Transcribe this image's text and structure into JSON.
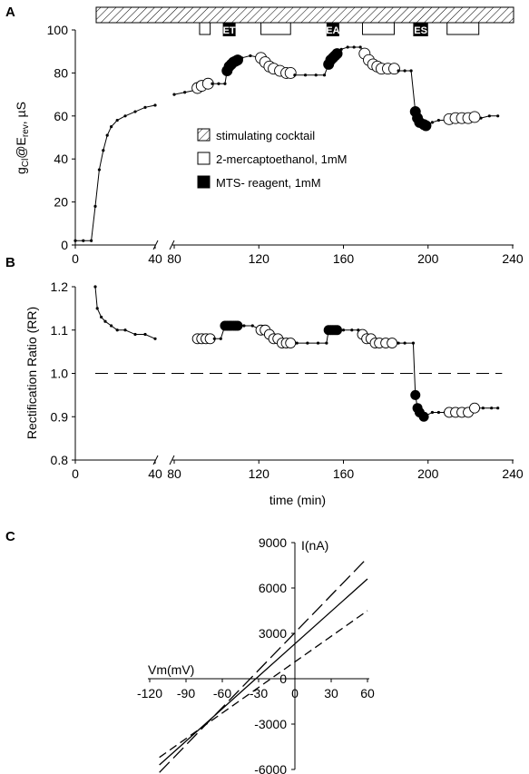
{
  "chart_data": [
    {
      "panel": "A",
      "type": "scatter",
      "ylabel_main": "g",
      "ylabel_sub": "Cl",
      "ylabel_mid": "@E",
      "ylabel_sub2": "rev",
      "ylabel_unit": ", µS",
      "ylim": [
        0,
        100
      ],
      "yticks": [
        "0",
        "20",
        "40",
        "60",
        "80",
        "100"
      ],
      "xticks_left": [
        "0",
        "40"
      ],
      "xticks_right": [
        "80",
        "120",
        "160",
        "200",
        "240"
      ],
      "legend": [
        {
          "marker": "hatched",
          "label": "stimulating cocktail"
        },
        {
          "marker": "open",
          "label": "2-mercaptoethanol, 1mM"
        },
        {
          "marker": "filled",
          "label": "MTS- reagent, 1mM"
        }
      ],
      "treatment_boxes": [
        {
          "label": "",
          "x": [
            92,
            97
          ]
        },
        {
          "label": "ET",
          "x": [
            103,
            109
          ]
        },
        {
          "label": "",
          "x": [
            121,
            135
          ]
        },
        {
          "label": "EA",
          "x": [
            152,
            158
          ]
        },
        {
          "label": "",
          "x": [
            169,
            184
          ]
        },
        {
          "label": "ES",
          "x": [
            193,
            200
          ]
        },
        {
          "label": "",
          "x": [
            209,
            224
          ]
        }
      ],
      "series": [
        {
          "points": [
            [
              0,
              2
            ],
            [
              4,
              2
            ],
            [
              8,
              2
            ],
            [
              10,
              18
            ],
            [
              12,
              35
            ],
            [
              14,
              44
            ],
            [
              16,
              51
            ],
            [
              18,
              55
            ],
            [
              21,
              58
            ],
            [
              25,
              60
            ],
            [
              30,
              62
            ],
            [
              35,
              64
            ],
            [
              40,
              65
            ]
          ],
          "kind": "small"
        },
        {
          "points": [
            [
              80,
              70
            ],
            [
              85,
              71
            ],
            [
              90,
              72
            ]
          ],
          "kind": "small"
        },
        {
          "points": [
            [
              91,
              73
            ],
            [
              93,
              74
            ],
            [
              96,
              75
            ]
          ],
          "kind": "open"
        },
        {
          "points": [
            [
              98,
              75
            ],
            [
              101,
              75
            ],
            [
              104,
              75
            ]
          ],
          "kind": "small"
        },
        {
          "points": [
            [
              105,
              81
            ],
            [
              106,
              83
            ],
            [
              107,
              84
            ],
            [
              108,
              85
            ],
            [
              109,
              85.5
            ],
            [
              110,
              86
            ]
          ],
          "kind": "filled"
        },
        {
          "points": [
            [
              112,
              87
            ],
            [
              116,
              88
            ]
          ],
          "kind": "small"
        },
        {
          "points": [
            [
              121,
              87
            ],
            [
              123,
              85
            ],
            [
              125,
              83
            ],
            [
              127,
              82
            ],
            [
              130,
              81
            ],
            [
              133,
              80
            ],
            [
              135,
              80
            ]
          ],
          "kind": "open"
        },
        {
          "points": [
            [
              137,
              79
            ],
            [
              142,
              79
            ],
            [
              147,
              79
            ],
            [
              151,
              79
            ]
          ],
          "kind": "small"
        },
        {
          "points": [
            [
              153,
              84
            ],
            [
              154,
              86
            ],
            [
              155,
              87
            ],
            [
              156,
              88
            ],
            [
              157,
              89
            ]
          ],
          "kind": "filled"
        },
        {
          "points": [
            [
              159,
              91
            ],
            [
              162,
              92
            ],
            [
              165,
              92
            ],
            [
              168,
              92
            ]
          ],
          "kind": "small"
        },
        {
          "points": [
            [
              170,
              89
            ],
            [
              172,
              86
            ],
            [
              174,
              84
            ],
            [
              176,
              83
            ],
            [
              178,
              82
            ],
            [
              181,
              82
            ],
            [
              184,
              82
            ]
          ],
          "kind": "open"
        },
        {
          "points": [
            [
              186,
              81
            ],
            [
              189,
              81
            ],
            [
              192,
              81
            ]
          ],
          "kind": "small"
        },
        {
          "points": [
            [
              194,
              62
            ],
            [
              195,
              59
            ],
            [
              196,
              57
            ],
            [
              198,
              56
            ],
            [
              199,
              55.5
            ]
          ],
          "kind": "filled"
        },
        {
          "points": [
            [
              202,
              57
            ],
            [
              205,
              58
            ],
            [
              208,
              58
            ]
          ],
          "kind": "small"
        },
        {
          "points": [
            [
              210,
              58.5
            ],
            [
              213,
              59
            ],
            [
              216,
              59
            ],
            [
              219,
              59
            ],
            [
              222,
              59.5
            ]
          ],
          "kind": "open"
        },
        {
          "points": [
            [
              225,
              59
            ],
            [
              229,
              60
            ],
            [
              233,
              60
            ]
          ],
          "kind": "small"
        }
      ]
    },
    {
      "panel": "B",
      "type": "scatter",
      "ylabel": "Rectification Ratio (RR)",
      "xlabel": "time (min)",
      "ylim": [
        0.8,
        1.2
      ],
      "yticks": [
        "0.8",
        "0.9",
        "1.0",
        "1.1",
        "1.2"
      ],
      "xticks_left": [
        "0",
        "40"
      ],
      "xticks_right": [
        "80",
        "120",
        "160",
        "200",
        "240"
      ],
      "reference_line": 1.0,
      "series": [
        {
          "points": [
            [
              10,
              1.2
            ],
            [
              11,
              1.15
            ],
            [
              13,
              1.13
            ],
            [
              15,
              1.12
            ],
            [
              18,
              1.11
            ],
            [
              21,
              1.1
            ],
            [
              25,
              1.1
            ],
            [
              30,
              1.09
            ],
            [
              35,
              1.09
            ],
            [
              40,
              1.08
            ]
          ],
          "kind": "small"
        },
        {
          "points": [
            [
              91,
              1.08
            ],
            [
              93,
              1.08
            ],
            [
              95,
              1.08
            ],
            [
              97,
              1.08
            ]
          ],
          "kind": "open"
        },
        {
          "points": [
            [
              99,
              1.08
            ],
            [
              102,
              1.08
            ]
          ],
          "kind": "small"
        },
        {
          "points": [
            [
              104,
              1.11
            ],
            [
              105,
              1.11
            ],
            [
              106,
              1.11
            ],
            [
              107,
              1.11
            ],
            [
              108,
              1.11
            ],
            [
              109,
              1.11
            ],
            [
              110,
              1.11
            ]
          ],
          "kind": "filled"
        },
        {
          "points": [
            [
              113,
              1.11
            ],
            [
              117,
              1.11
            ]
          ],
          "kind": "small"
        },
        {
          "points": [
            [
              121,
              1.1
            ],
            [
              123,
              1.1
            ],
            [
              125,
              1.09
            ],
            [
              127,
              1.08
            ],
            [
              129,
              1.08
            ],
            [
              131,
              1.07
            ],
            [
              133,
              1.07
            ],
            [
              135,
              1.07
            ]
          ],
          "kind": "open"
        },
        {
          "points": [
            [
              138,
              1.07
            ],
            [
              143,
              1.07
            ],
            [
              148,
              1.07
            ],
            [
              152,
              1.07
            ]
          ],
          "kind": "small"
        },
        {
          "points": [
            [
              153,
              1.1
            ],
            [
              154,
              1.1
            ],
            [
              155,
              1.1
            ],
            [
              156,
              1.1
            ],
            [
              157,
              1.1
            ]
          ],
          "kind": "filled"
        },
        {
          "points": [
            [
              160,
              1.1
            ],
            [
              164,
              1.1
            ],
            [
              167,
              1.1
            ]
          ],
          "kind": "small"
        },
        {
          "points": [
            [
              169,
              1.09
            ],
            [
              171,
              1.08
            ],
            [
              173,
              1.08
            ],
            [
              175,
              1.07
            ],
            [
              177,
              1.07
            ],
            [
              180,
              1.07
            ],
            [
              183,
              1.07
            ]
          ],
          "kind": "open"
        },
        {
          "points": [
            [
              186,
              1.07
            ],
            [
              189,
              1.07
            ],
            [
              193,
              1.07
            ]
          ],
          "kind": "small"
        },
        {
          "points": [
            [
              194,
              0.95
            ],
            [
              195,
              0.92
            ],
            [
              196,
              0.91
            ],
            [
              198,
              0.9
            ]
          ],
          "kind": "filled"
        },
        {
          "points": [
            [
              202,
              0.91
            ],
            [
              205,
              0.91
            ],
            [
              208,
              0.91
            ]
          ],
          "kind": "small"
        },
        {
          "points": [
            [
              210,
              0.91
            ],
            [
              213,
              0.91
            ],
            [
              216,
              0.91
            ],
            [
              219,
              0.91
            ],
            [
              222,
              0.92
            ]
          ],
          "kind": "open"
        },
        {
          "points": [
            [
              226,
              0.92
            ],
            [
              230,
              0.92
            ],
            [
              233,
              0.92
            ]
          ],
          "kind": "small"
        }
      ]
    },
    {
      "panel": "C",
      "type": "line",
      "xlabel": "Vm(mV)",
      "ylabel": "I(nA)",
      "xlim": [
        -120,
        60
      ],
      "ylim": [
        -6000,
        9000
      ],
      "xticks": [
        "-120",
        "-90",
        "-60",
        "-30",
        "0",
        "30",
        "60"
      ],
      "yticks": [
        "-6000",
        "-3000",
        "0",
        "3000",
        "6000",
        "9000"
      ],
      "series": [
        {
          "style": "long-dash",
          "points": [
            [
              -112,
              -6200
            ],
            [
              60,
              8000
            ]
          ]
        },
        {
          "style": "solid",
          "points": [
            [
              -112,
              -5700
            ],
            [
              60,
              6600
            ]
          ]
        },
        {
          "style": "short-dash",
          "points": [
            [
              -112,
              -5200
            ],
            [
              60,
              4500
            ]
          ]
        }
      ]
    }
  ]
}
